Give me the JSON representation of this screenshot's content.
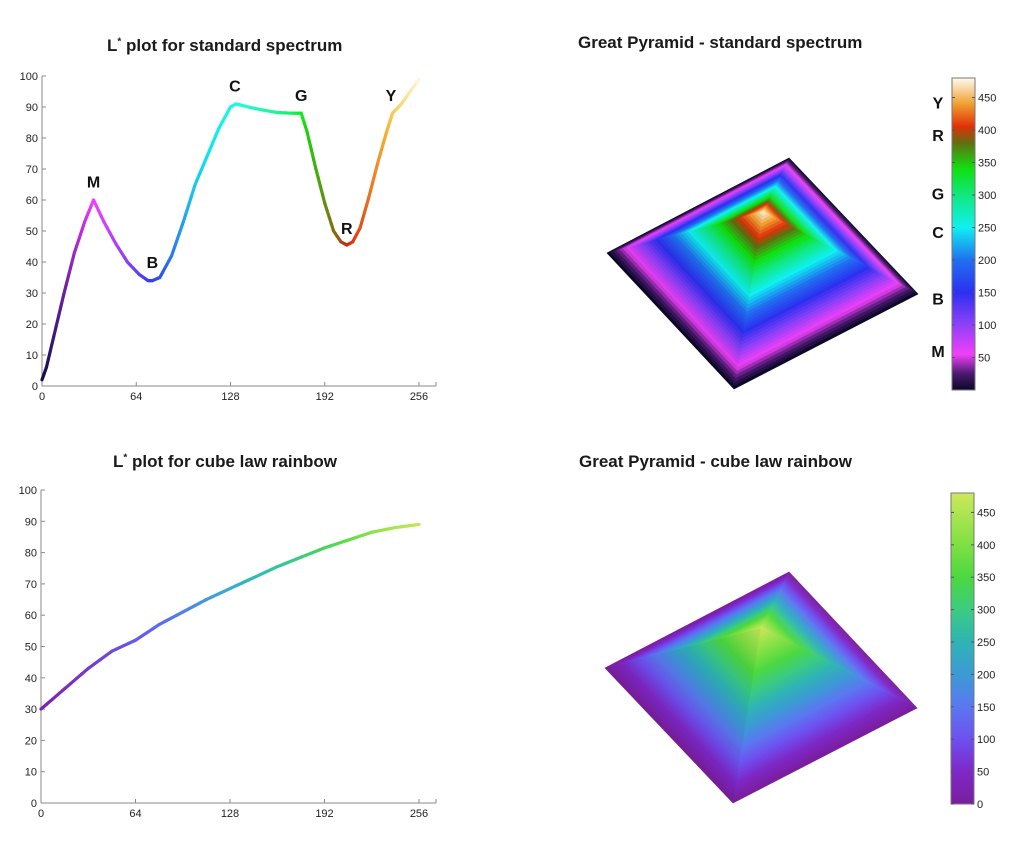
{
  "chart_data": [
    {
      "id": "lstar-standard",
      "type": "line",
      "title": "L* plot for standard spectrum",
      "title_prefix": "L",
      "title_sup": "*",
      "title_rest": " plot for standard spectrum",
      "xlabel": "",
      "ylabel": "",
      "xlim": [
        0,
        262
      ],
      "ylim": [
        0,
        100
      ],
      "xticks": [
        0,
        64,
        128,
        192,
        256
      ],
      "yticks": [
        0,
        10,
        20,
        30,
        40,
        50,
        60,
        70,
        80,
        90,
        100
      ],
      "grid": false,
      "x": [
        0,
        3,
        8,
        15,
        22,
        29,
        35,
        42,
        50,
        58,
        66,
        72,
        75,
        80,
        88,
        96,
        104,
        112,
        120,
        128,
        132,
        140,
        150,
        160,
        170,
        176,
        180,
        186,
        192,
        198,
        203,
        207,
        211,
        216,
        222,
        228,
        234,
        238,
        244,
        250,
        256
      ],
      "values": [
        2,
        6,
        16,
        30,
        43,
        53,
        60,
        53,
        46,
        40,
        36,
        34,
        34,
        35,
        42,
        53,
        65,
        74,
        83,
        90,
        91,
        90,
        89,
        88.2,
        88,
        88,
        82,
        70,
        59,
        50,
        46.5,
        45.5,
        46.5,
        51,
        61,
        72,
        82,
        88,
        91,
        95,
        99
      ],
      "line_colors": [
        "#14103a",
        "#1e1150",
        "#3a1a78",
        "#6a1f9a",
        "#9a28c4",
        "#c830e4",
        "#f040f8",
        "#d840f8",
        "#b040f8",
        "#8a40f8",
        "#5c40f8",
        "#3a3cf4",
        "#3040f0",
        "#2c50f0",
        "#2c78ee",
        "#22a0ee",
        "#1ec4ee",
        "#10e0ee",
        "#10f0ec",
        "#18f8e8",
        "#20f8e0",
        "#28f8d0",
        "#20f8b0",
        "#18f890",
        "#10f070",
        "#10ee20",
        "#20d010",
        "#40b010",
        "#609010",
        "#807010",
        "#a05010",
        "#c03010",
        "#d83810",
        "#e05018",
        "#e87020",
        "#f09028",
        "#f4b030",
        "#f8c848",
        "#fad878",
        "#fde8a8",
        "#fff4d8"
      ],
      "annotations": [
        {
          "text": "M",
          "x": 35,
          "y": 64
        },
        {
          "text": "B",
          "x": 75,
          "y": 38
        },
        {
          "text": "C",
          "x": 131,
          "y": 95
        },
        {
          "text": "G",
          "x": 176,
          "y": 92
        },
        {
          "text": "R",
          "x": 207,
          "y": 49
        },
        {
          "text": "Y",
          "x": 237,
          "y": 92
        }
      ]
    },
    {
      "id": "pyramid-standard",
      "type": "heatmap",
      "title": "Great Pyramid - standard spectrum",
      "colorbar": {
        "range": [
          0,
          480
        ],
        "ticks": [
          50,
          100,
          150,
          200,
          250,
          300,
          350,
          400,
          450
        ],
        "stops": [
          {
            "v": 0,
            "c": "#0c0828"
          },
          {
            "v": 25,
            "c": "#4a1a70"
          },
          {
            "v": 55,
            "c": "#f040f8"
          },
          {
            "v": 100,
            "c": "#9040f8"
          },
          {
            "v": 150,
            "c": "#2c30f0"
          },
          {
            "v": 200,
            "c": "#2070f0"
          },
          {
            "v": 250,
            "c": "#10f0f0"
          },
          {
            "v": 300,
            "c": "#10e880"
          },
          {
            "v": 340,
            "c": "#10e010"
          },
          {
            "v": 380,
            "c": "#607010"
          },
          {
            "v": 405,
            "c": "#e03008"
          },
          {
            "v": 440,
            "c": "#f0a030"
          },
          {
            "v": 480,
            "c": "#fffbf0"
          }
        ],
        "side_labels": [
          {
            "text": "Y",
            "v": 442
          },
          {
            "text": "R",
            "v": 392
          },
          {
            "text": "G",
            "v": 302
          },
          {
            "text": "C",
            "v": 243
          },
          {
            "text": "B",
            "v": 141
          },
          {
            "text": "M",
            "v": 60
          }
        ]
      }
    },
    {
      "id": "lstar-cubelaw",
      "type": "line",
      "title": "L* plot for cube law rainbow",
      "title_prefix": "L",
      "title_sup": "*",
      "title_rest": " plot for cube law rainbow",
      "xlabel": "",
      "ylabel": "",
      "xlim": [
        0,
        262
      ],
      "ylim": [
        0,
        100
      ],
      "xticks": [
        0,
        64,
        128,
        192,
        256
      ],
      "yticks": [
        0,
        10,
        20,
        30,
        40,
        50,
        60,
        70,
        80,
        90,
        100
      ],
      "grid": false,
      "x": [
        0,
        16,
        32,
        48,
        64,
        80,
        96,
        112,
        128,
        144,
        160,
        176,
        192,
        208,
        224,
        240,
        256
      ],
      "values": [
        30,
        36.5,
        43,
        48.5,
        52,
        57,
        61,
        65,
        68.5,
        72,
        75.5,
        78.5,
        81.5,
        84,
        86.5,
        88,
        89
      ],
      "line_colors": [
        "#7a22a8",
        "#7b2cc0",
        "#7838d0",
        "#6e48e0",
        "#6658ec",
        "#5c6af0",
        "#5080e8",
        "#4498dc",
        "#38aad0",
        "#30b8b8",
        "#34c4a0",
        "#3ccc80",
        "#48d460",
        "#60dc48",
        "#86e248",
        "#a8e64e",
        "#c2e854"
      ],
      "annotations": []
    },
    {
      "id": "pyramid-cubelaw",
      "type": "heatmap",
      "title": "Great Pyramid - cube law rainbow",
      "colorbar": {
        "range": [
          0,
          480
        ],
        "ticks": [
          0,
          50,
          100,
          150,
          200,
          250,
          300,
          350,
          400,
          450
        ],
        "stops": [
          {
            "v": 0,
            "c": "#7a1e9e"
          },
          {
            "v": 50,
            "c": "#7e28c8"
          },
          {
            "v": 100,
            "c": "#6e50f0"
          },
          {
            "v": 150,
            "c": "#5a78f0"
          },
          {
            "v": 200,
            "c": "#3c9ad4"
          },
          {
            "v": 250,
            "c": "#2eb4b4"
          },
          {
            "v": 300,
            "c": "#3ccc80"
          },
          {
            "v": 350,
            "c": "#4cd840"
          },
          {
            "v": 400,
            "c": "#7ee044"
          },
          {
            "v": 480,
            "c": "#cce85a"
          }
        ],
        "side_labels": []
      }
    }
  ],
  "titles": {
    "top_left_prefix": "L",
    "top_left_sup": "*",
    "top_left_rest": " plot for standard spectrum",
    "top_right": "Great Pyramid - standard spectrum",
    "bottom_left_prefix": "L",
    "bottom_left_sup": "*",
    "bottom_left_rest": " plot for cube law rainbow",
    "bottom_right": "Great Pyramid - cube law rainbow"
  }
}
